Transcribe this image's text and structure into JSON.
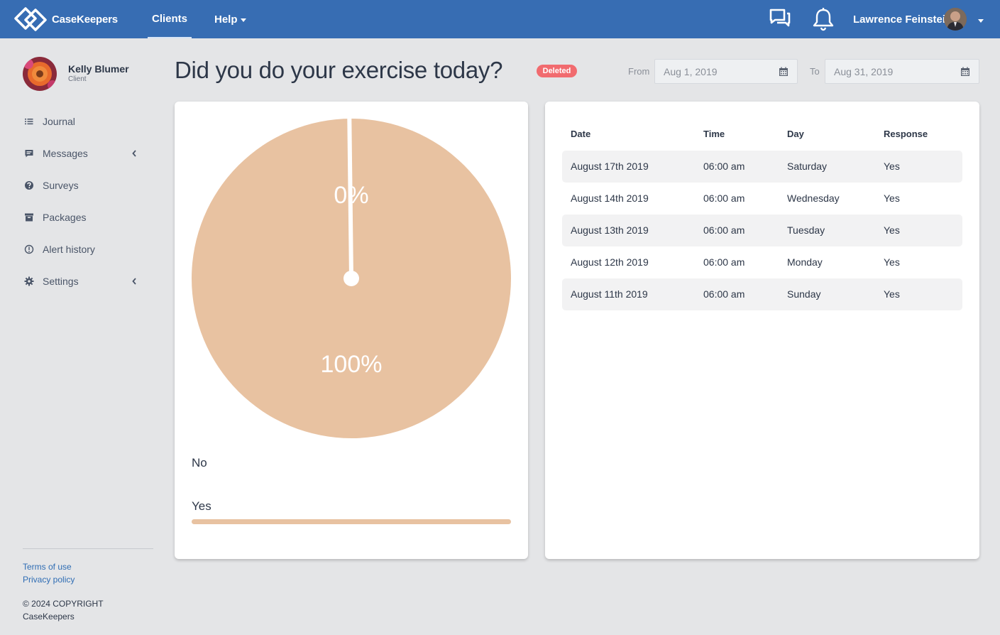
{
  "app": {
    "brand": "CaseKeepers"
  },
  "nav": {
    "clients": "Clients",
    "help": "Help"
  },
  "user": {
    "name": "Lawrence Feinstein"
  },
  "client": {
    "name": "Kelly Blumer",
    "role": "Client"
  },
  "sidebar": {
    "items": [
      {
        "label": "Journal",
        "icon": "list-icon"
      },
      {
        "label": "Messages",
        "icon": "message-icon"
      },
      {
        "label": "Surveys",
        "icon": "question-circle-icon"
      },
      {
        "label": "Packages",
        "icon": "archive-box-icon"
      },
      {
        "label": "Alert history",
        "icon": "info-circle-icon"
      },
      {
        "label": "Settings",
        "icon": "gear-icon"
      }
    ]
  },
  "footer": {
    "terms": "Terms of use",
    "privacy": "Privacy policy",
    "copyright": "© 2024 COPYRIGHT",
    "company": "CaseKeepers"
  },
  "survey": {
    "title": "Did you do your exercise today?",
    "status": "Deleted"
  },
  "filters": {
    "from_label": "From",
    "from_value": "Aug 1, 2019",
    "to_label": "To",
    "to_value": "Aug 31, 2019"
  },
  "chart_data": {
    "type": "pie",
    "categories": [
      "No",
      "Yes"
    ],
    "values": [
      0,
      100
    ],
    "labels": [
      "0%",
      "100%"
    ],
    "colors": [
      "#e8c2a1",
      "#e8c2a1"
    ]
  },
  "legend": {
    "items": [
      {
        "label": "No",
        "fraction": 0
      },
      {
        "label": "Yes",
        "fraction": 1
      }
    ]
  },
  "table": {
    "headers": {
      "date": "Date",
      "time": "Time",
      "day": "Day",
      "response": "Response"
    },
    "rows": [
      {
        "date": "August 17th 2019",
        "time": "06:00 am",
        "day": "Saturday",
        "response": "Yes"
      },
      {
        "date": "August 14th 2019",
        "time": "06:00 am",
        "day": "Wednesday",
        "response": "Yes"
      },
      {
        "date": "August 13th 2019",
        "time": "06:00 am",
        "day": "Tuesday",
        "response": "Yes"
      },
      {
        "date": "August 12th 2019",
        "time": "06:00 am",
        "day": "Monday",
        "response": "Yes"
      },
      {
        "date": "August 11th 2019",
        "time": "06:00 am",
        "day": "Sunday",
        "response": "Yes"
      }
    ]
  }
}
